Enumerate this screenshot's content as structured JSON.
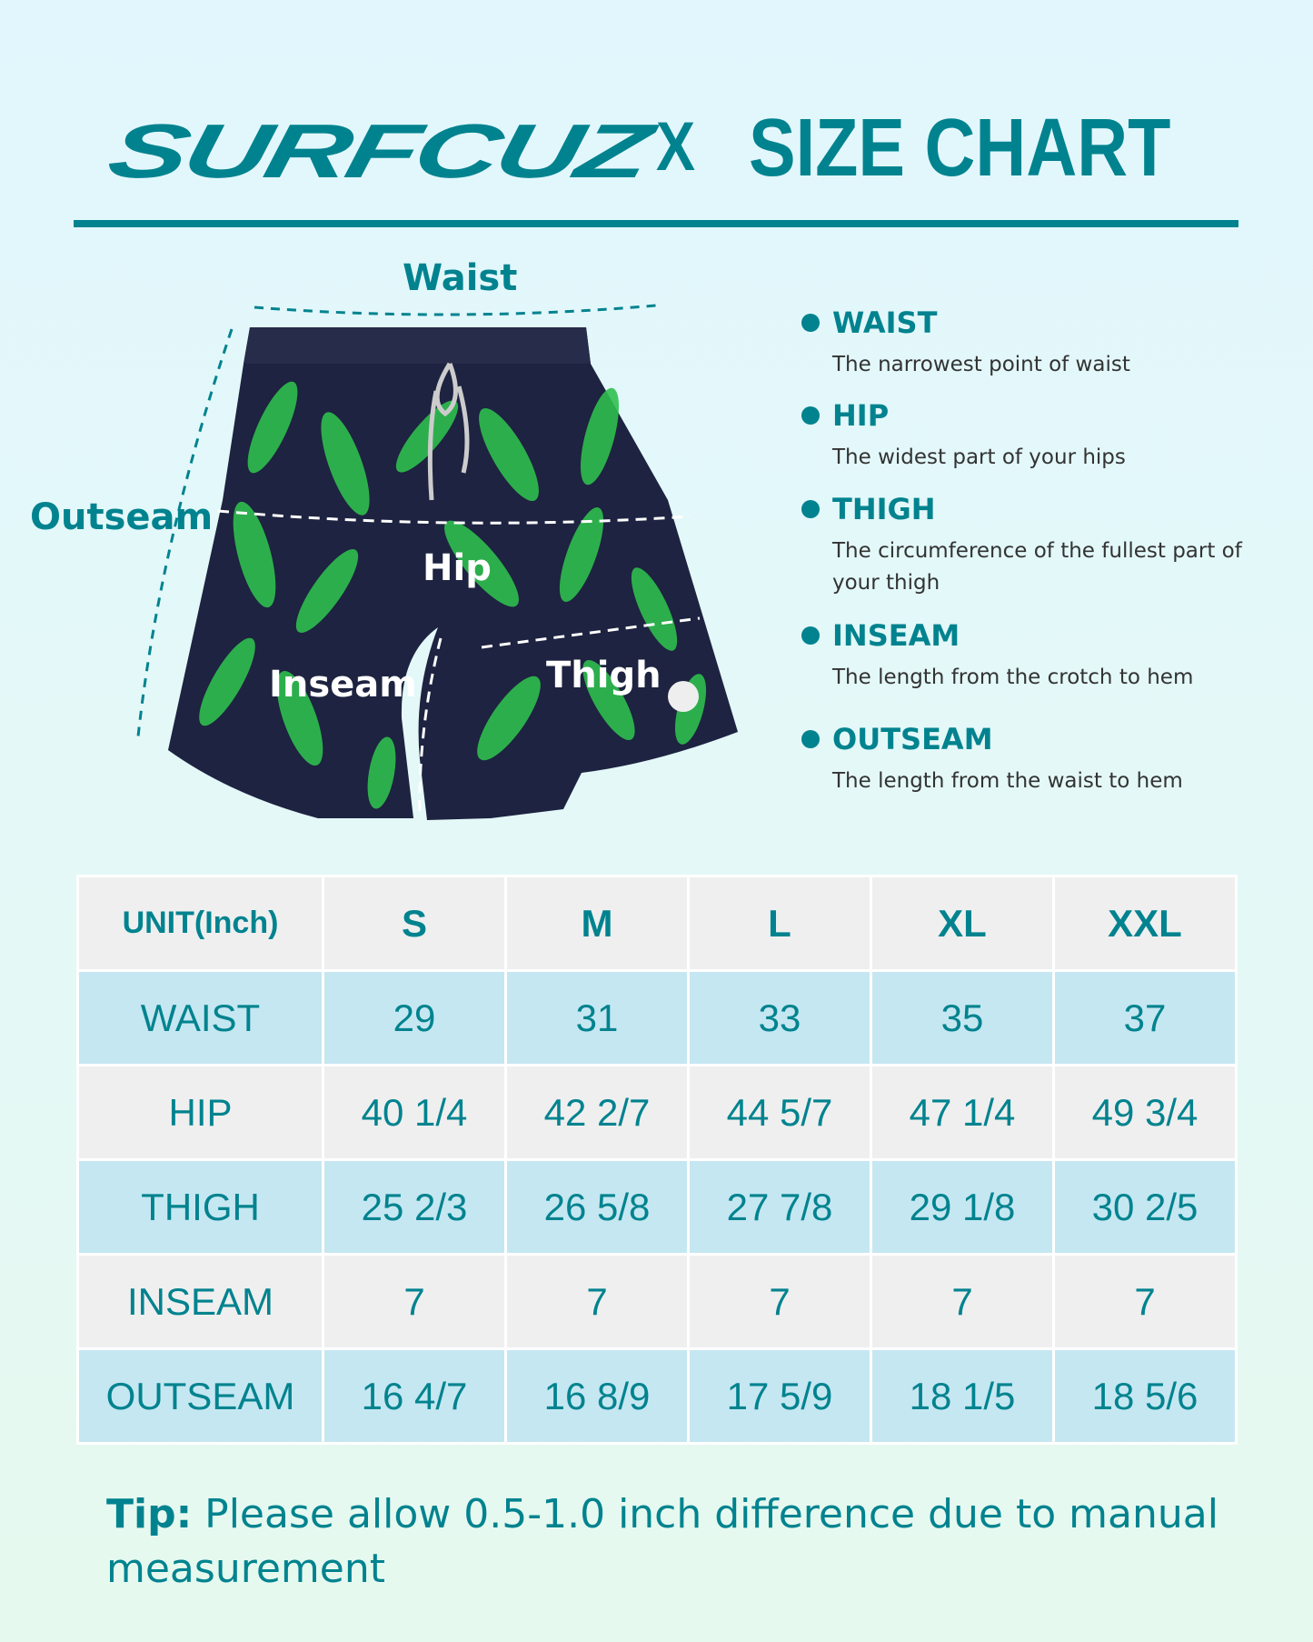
{
  "header": {
    "brand": "SURFCUZ",
    "separator": "X",
    "title": "SIZE CHART"
  },
  "colors": {
    "accent": "#00838f",
    "row_gray": "#efefef",
    "row_blue": "#c5e7f1",
    "shorts_base": "#1d2340",
    "leaf": "#2fbf4f"
  },
  "diagram": {
    "labels": {
      "waist": "Waist",
      "outseam": "Outseam",
      "hip": "Hip",
      "inseam": "Inseam",
      "thigh": "Thigh"
    }
  },
  "definitions": [
    {
      "term": "WAIST",
      "text": "The narrowest point of waist"
    },
    {
      "term": "HIP",
      "text": "The widest part of your hips"
    },
    {
      "term": "THIGH",
      "text": "The circumference of the fullest part of your thigh"
    },
    {
      "term": "INSEAM",
      "text": "The length from the crotch to hem"
    },
    {
      "term": "OUTSEAM",
      "text": "The length from the waist to hem"
    }
  ],
  "table": {
    "headers": [
      "UNIT(Inch)",
      "S",
      "M",
      "L",
      "XL",
      "XXL"
    ],
    "rows": [
      [
        "WAIST",
        "29",
        "31",
        "33",
        "35",
        "37"
      ],
      [
        "HIP",
        "40 1/4",
        "42 2/7",
        "44 5/7",
        "47 1/4",
        "49 3/4"
      ],
      [
        "THIGH",
        "25 2/3",
        "26 5/8",
        "27 7/8",
        "29 1/8",
        "30 2/5"
      ],
      [
        "INSEAM",
        "7",
        "7",
        "7",
        "7",
        "7"
      ],
      [
        "OUTSEAM",
        "16 4/7",
        "16 8/9",
        "17 5/9",
        "18 1/5",
        "18 5/6"
      ]
    ]
  },
  "tip": {
    "label": "Tip:",
    "text": " Please allow 0.5-1.0 inch difference due to manual measurement"
  }
}
